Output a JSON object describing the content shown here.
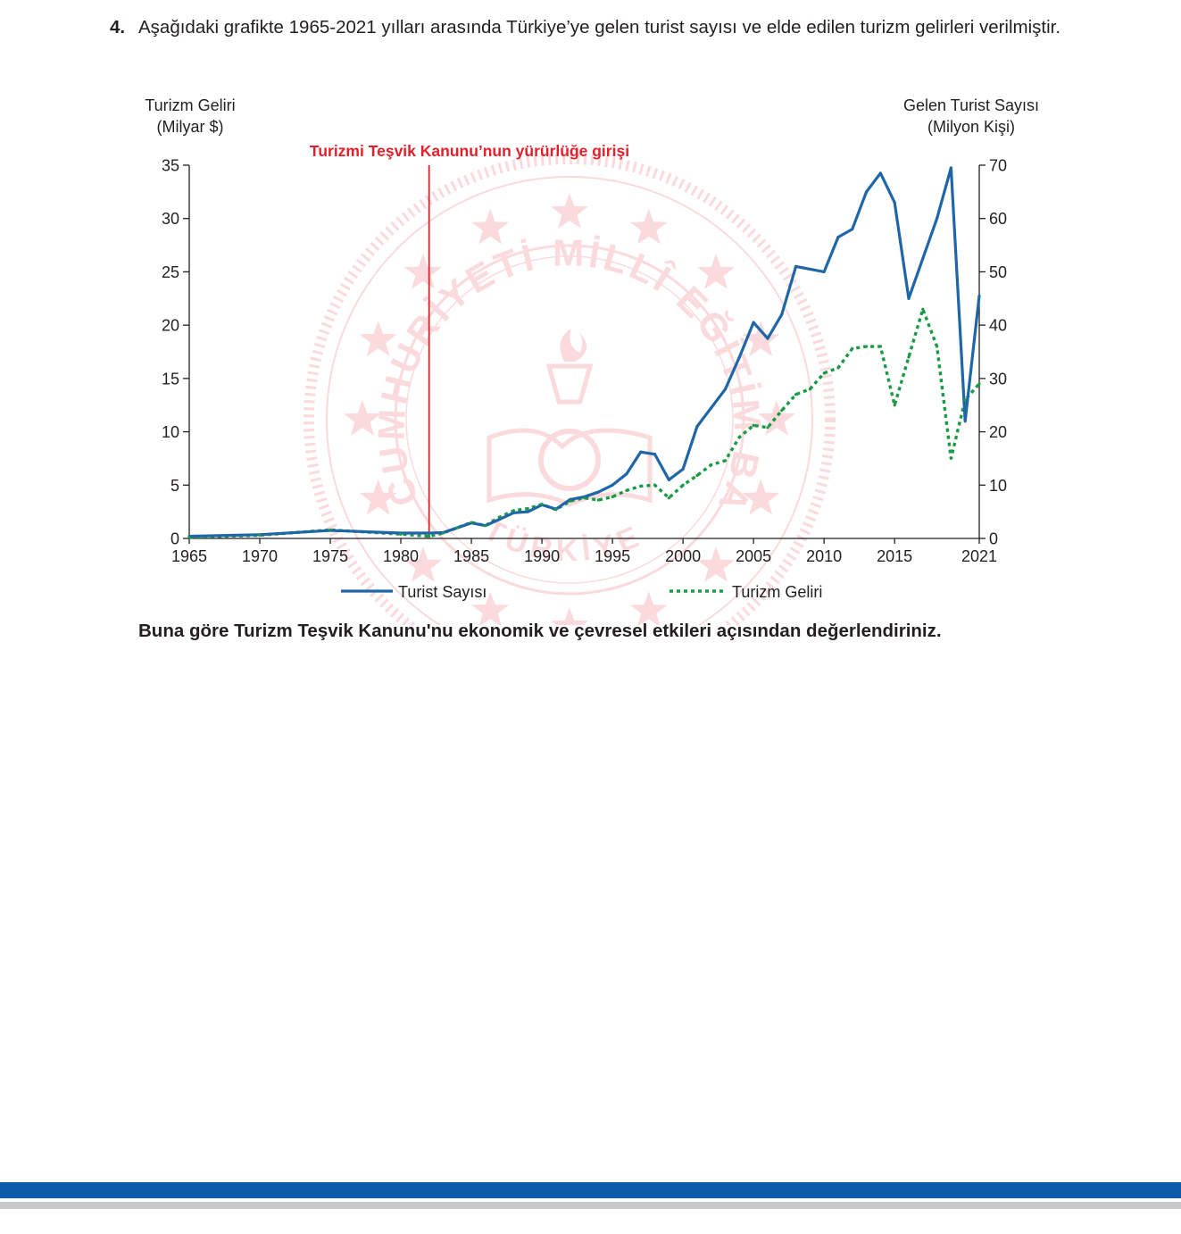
{
  "question": {
    "number": "4.",
    "text": "Aşağıdaki grafikte 1965-2021 yılları arasında Türkiye’ye gelen turist sayısı ve elde edilen turizm gelirleri verilmiştir."
  },
  "prompt": "Buna göre Turizm Teşvik Kanunu'nu ekonomik ve çevresel etkileri açısından değerlendiriniz.",
  "watermark": {
    "text_top": "CUMHURİYETİ MİLLÎ EĞİTİM BAKANLIĞI",
    "text_bottom": "TÜRKİYE"
  },
  "colors": {
    "tourist_line": "#1f66a8",
    "revenue_line": "#1a9a45",
    "marker_line": "#e3202a",
    "footer_blue": "#0b5ca9",
    "footer_gray": "#c8cacb"
  },
  "chart_data": {
    "type": "line",
    "left_axis_label_line1": "Turizm Geliri",
    "left_axis_label_line2": "(Milyar $)",
    "right_axis_label_line1": "Gelen Turist Sayısı",
    "right_axis_label_line2": "(Milyon Kişi)",
    "left_ticks": [
      0,
      5,
      10,
      15,
      20,
      25,
      30,
      35
    ],
    "right_ticks": [
      0,
      10,
      20,
      30,
      40,
      50,
      60,
      70
    ],
    "x_ticks": [
      "1965",
      "1970",
      "1975",
      "1980",
      "1985",
      "1990",
      "1995",
      "2000",
      "2005",
      "2010",
      "2015",
      "2021"
    ],
    "xlim": [
      1965,
      2021
    ],
    "ylim_left": [
      0,
      35
    ],
    "ylim_right": [
      0,
      70
    ],
    "grid": false,
    "legend_position": "bottom",
    "annotation": {
      "text": "Turizmi Teşvik Kanunu’nun yürürlüğe girişi",
      "year": 1982
    },
    "series": [
      {
        "name": "Turist Sayısı",
        "axis": "right",
        "style": "solid",
        "x": [
          1965,
          1970,
          1975,
          1980,
          1982,
          1983,
          1984,
          1985,
          1986,
          1987,
          1988,
          1989,
          1990,
          1991,
          1992,
          1993,
          1994,
          1995,
          1996,
          1997,
          1998,
          1999,
          2000,
          2001,
          2002,
          2003,
          2004,
          2005,
          2006,
          2007,
          2008,
          2009,
          2010,
          2011,
          2012,
          2013,
          2014,
          2015,
          2016,
          2017,
          2018,
          2019,
          2020,
          2021
        ],
        "values": [
          0.4,
          0.7,
          1.5,
          1.0,
          1.0,
          1.1,
          2.0,
          2.9,
          2.4,
          3.6,
          4.8,
          5.0,
          6.3,
          5.5,
          7.3,
          7.8,
          8.7,
          10.0,
          12.1,
          16.2,
          15.8,
          11.0,
          13.0,
          21.0,
          24.5,
          28.0,
          34.0,
          40.5,
          37.5,
          42.0,
          51.0,
          50.5,
          50.0,
          56.5,
          58.0,
          65.0,
          68.5,
          63.0,
          45.0,
          52.5,
          60.0,
          69.5,
          22.0,
          45.5
        ]
      },
      {
        "name": "Turizm Geliri",
        "axis": "left",
        "style": "dotted",
        "x": [
          1965,
          1970,
          1975,
          1980,
          1982,
          1983,
          1984,
          1985,
          1986,
          1987,
          1988,
          1989,
          1990,
          1991,
          1992,
          1993,
          1994,
          1995,
          1996,
          1997,
          1998,
          1999,
          2000,
          2001,
          2002,
          2003,
          2004,
          2005,
          2006,
          2007,
          2008,
          2009,
          2010,
          2011,
          2012,
          2013,
          2014,
          2015,
          2016,
          2017,
          2018,
          2019,
          2020,
          2021
        ],
        "values": [
          0.1,
          0.3,
          0.8,
          0.4,
          0.2,
          0.5,
          1.0,
          1.5,
          1.2,
          2.0,
          2.6,
          2.8,
          3.2,
          2.7,
          3.5,
          3.8,
          3.6,
          3.9,
          4.5,
          4.9,
          5.0,
          3.8,
          5.0,
          5.9,
          6.9,
          7.3,
          9.5,
          10.6,
          10.4,
          12.0,
          13.5,
          14.0,
          15.5,
          16.0,
          17.8,
          18.0,
          18.0,
          12.5,
          17.0,
          21.5,
          18.0,
          7.5,
          13.0,
          14.5
        ]
      }
    ]
  }
}
